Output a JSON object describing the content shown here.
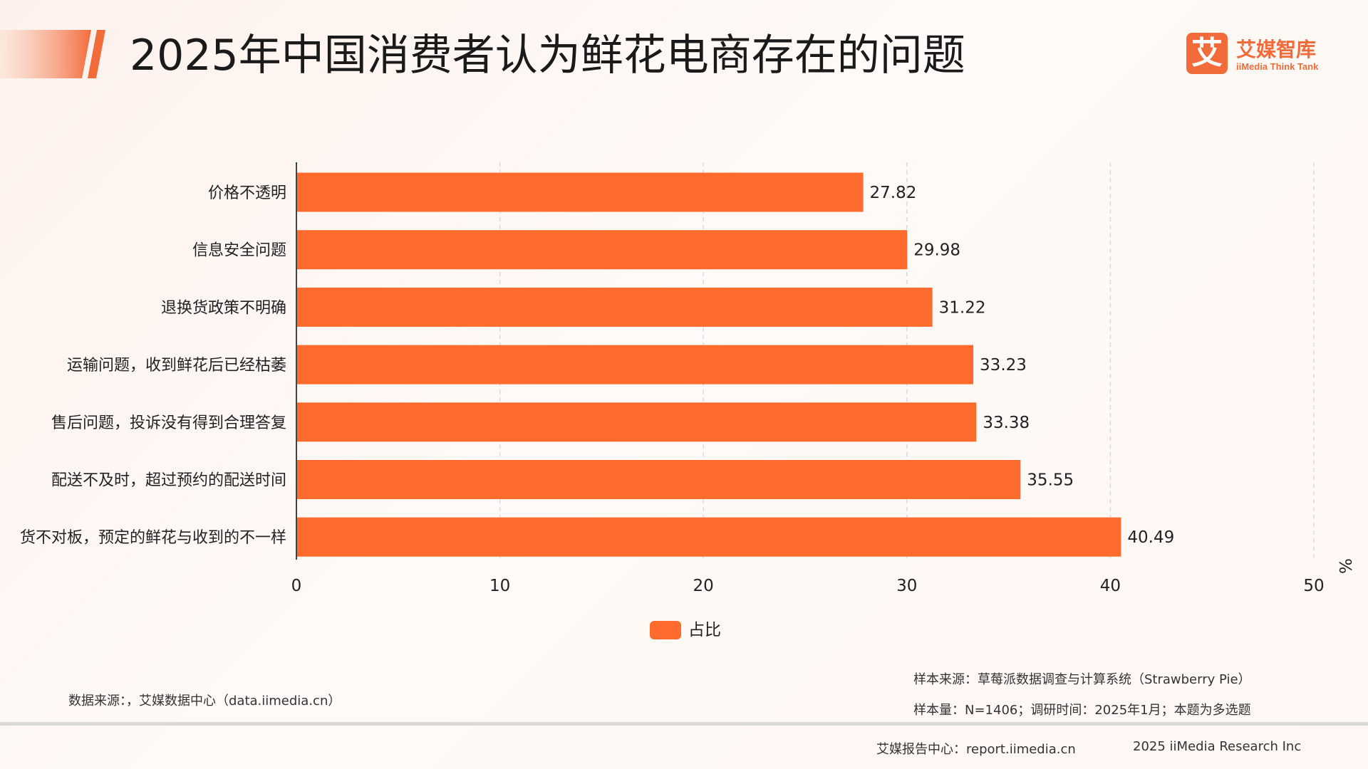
{
  "header": {
    "title": "2025年中国消费者认为鲜花电商存在的问题"
  },
  "logo": {
    "mark": "艾",
    "name": "艾媒智库",
    "subtitle": "iiMedia Think Tank"
  },
  "colors": {
    "bar": "#ff6b2c",
    "accent": "#f26b3a",
    "grid": "#d7dbe6"
  },
  "chart_data": {
    "type": "bar",
    "orientation": "horizontal",
    "categories": [
      "价格不透明",
      "信息安全问题",
      "退换货政策不明确",
      "运输问题，收到鲜花后已经枯萎",
      "售后问题，投诉没有得到合理答复",
      "配送不及时，超过预约的配送时间",
      "货不对板，预定的鲜花与收到的不一样"
    ],
    "series": [
      {
        "name": "占比",
        "values": [
          27.82,
          29.98,
          31.22,
          33.23,
          33.38,
          35.55,
          40.49
        ]
      }
    ],
    "xlim": [
      0,
      50
    ],
    "xticks": [
      0,
      10,
      20,
      30,
      40,
      50
    ],
    "unit": "%",
    "grid": true,
    "legend_position": "bottom-center"
  },
  "footer": {
    "data_source": "数据来源：，艾媒数据中心（data.iimedia.cn）",
    "sample_source": "样本来源：草莓派数据调查与计算系统（Strawberry Pie）",
    "sample_size": "样本量：N=1406；调研时间：2025年1月；本题为多选题",
    "report_center": "艾媒报告中心：report.iimedia.cn",
    "copyright": "2025 iiMedia Research Inc"
  }
}
